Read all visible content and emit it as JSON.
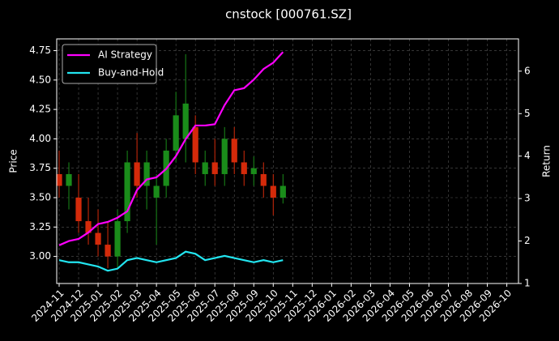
{
  "chart_data": {
    "type": "candlestick",
    "title": "cnstock [000761.SZ]",
    "ylabel": "Price",
    "y2label": "Return",
    "xlim": [
      -0.125,
      23.6
    ],
    "xticks": [
      {
        "value": 0,
        "label": "2024-11"
      },
      {
        "value": 1,
        "label": "2024-12"
      },
      {
        "value": 2,
        "label": "2025-01"
      },
      {
        "value": 3,
        "label": "2025-02"
      },
      {
        "value": 4,
        "label": "2025-03"
      },
      {
        "value": 5,
        "label": "2025-04"
      },
      {
        "value": 6,
        "label": "2025-05"
      },
      {
        "value": 7,
        "label": "2025-06"
      },
      {
        "value": 8,
        "label": "2025-07"
      },
      {
        "value": 9,
        "label": "2025-08"
      },
      {
        "value": 10,
        "label": "2025-09"
      },
      {
        "value": 11,
        "label": "2025-10"
      },
      {
        "value": 12,
        "label": "2025-11"
      },
      {
        "value": 13,
        "label": "2025-12"
      },
      {
        "value": 14,
        "label": "2026-01"
      },
      {
        "value": 15,
        "label": "2026-02"
      },
      {
        "value": 16,
        "label": "2026-03"
      },
      {
        "value": 17,
        "label": "2026-04"
      },
      {
        "value": 18,
        "label": "2026-05"
      },
      {
        "value": 19,
        "label": "2026-06"
      },
      {
        "value": 20,
        "label": "2026-07"
      },
      {
        "value": 21,
        "label": "2026-08"
      },
      {
        "value": 22,
        "label": "2026-09"
      },
      {
        "value": 23,
        "label": "2026-10"
      }
    ],
    "ylim": [
      2.77,
      4.85
    ],
    "yticks": [
      {
        "value": 3,
        "label": "3.00"
      },
      {
        "value": 3.25,
        "label": "3.25"
      },
      {
        "value": 3.5,
        "label": "3.50"
      },
      {
        "value": 3.75,
        "label": "3.75"
      },
      {
        "value": 4,
        "label": "4.00"
      },
      {
        "value": 4.25,
        "label": "4.25"
      },
      {
        "value": 4.5,
        "label": "4.50"
      },
      {
        "value": 4.75,
        "label": "4.75"
      }
    ],
    "y2lim": [
      1,
      6.76
    ],
    "y2ticks": [
      1,
      2,
      3,
      4,
      5,
      6
    ],
    "grid": true,
    "legend": "upper left",
    "up_color": "#1a8c1a",
    "down_color": "#d42a0a",
    "x": [
      0,
      0.5,
      1,
      1.5,
      2,
      2.5,
      3,
      3.5,
      4,
      4.5,
      5,
      5.5,
      6,
      6.5,
      7,
      7.5,
      8,
      8.5,
      9,
      9.5,
      10,
      10.5,
      11,
      11.5
    ],
    "open": [
      3.7,
      3.6,
      3.5,
      3.3,
      3.2,
      3.1,
      3.0,
      3.3,
      3.8,
      3.6,
      3.5,
      3.6,
      3.9,
      4.0,
      4.1,
      3.7,
      3.8,
      3.7,
      4.0,
      3.8,
      3.7,
      3.7,
      3.6,
      3.5
    ],
    "high": [
      3.9,
      3.8,
      3.7,
      3.5,
      3.4,
      3.3,
      3.4,
      3.9,
      4.05,
      3.9,
      3.7,
      4.0,
      4.4,
      4.72,
      4.2,
      3.9,
      4.0,
      4.1,
      4.1,
      3.9,
      3.85,
      3.8,
      3.7,
      3.7
    ],
    "low": [
      3.5,
      3.4,
      3.2,
      3.1,
      3.0,
      2.9,
      2.9,
      3.2,
      3.5,
      3.4,
      3.1,
      3.5,
      3.8,
      3.8,
      3.7,
      3.6,
      3.6,
      3.6,
      3.7,
      3.6,
      3.6,
      3.5,
      3.35,
      3.45
    ],
    "close": [
      3.6,
      3.7,
      3.3,
      3.2,
      3.1,
      3.0,
      3.3,
      3.8,
      3.6,
      3.8,
      3.6,
      3.9,
      4.2,
      4.3,
      3.8,
      3.8,
      3.7,
      4.0,
      3.8,
      3.7,
      3.75,
      3.6,
      3.5,
      3.6
    ],
    "series": [
      {
        "name": "AI Strategy",
        "color": "#ff00ff",
        "axis": "y2",
        "values": [
          1.9,
          2.0,
          2.05,
          2.2,
          2.4,
          2.45,
          2.55,
          2.7,
          3.2,
          3.45,
          3.5,
          3.7,
          4.0,
          4.4,
          4.72,
          4.72,
          4.75,
          5.2,
          5.55,
          5.6,
          5.8,
          6.05,
          6.2,
          6.45
        ]
      },
      {
        "name": "Buy-and-Hold",
        "color": "#22e5f0",
        "axis": "y2",
        "values": [
          1.55,
          1.5,
          1.5,
          1.45,
          1.4,
          1.3,
          1.35,
          1.55,
          1.6,
          1.55,
          1.5,
          1.55,
          1.6,
          1.75,
          1.7,
          1.55,
          1.6,
          1.65,
          1.6,
          1.55,
          1.5,
          1.55,
          1.5,
          1.55
        ]
      }
    ]
  }
}
